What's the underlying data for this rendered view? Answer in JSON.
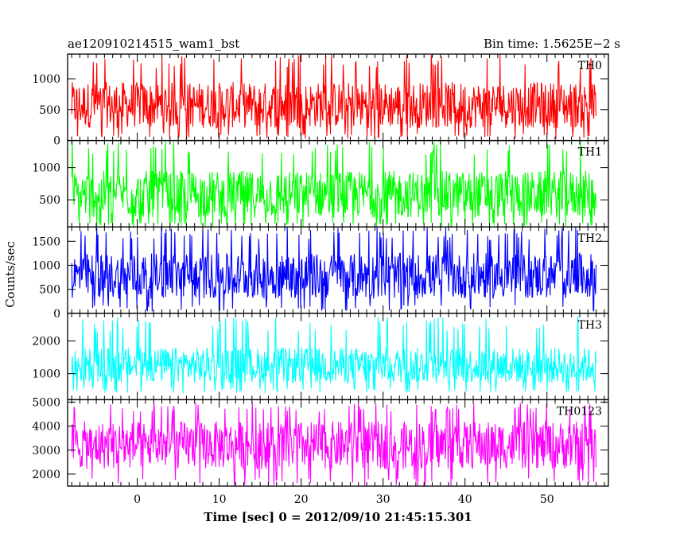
{
  "header": {
    "title": "ae120910214515_wam1_bst",
    "bin_time": "Bin time: 1.5625E−2 s"
  },
  "chart_data": {
    "type": "line",
    "subtype": "stacked light curves",
    "title": "ae120910214515_wam1_bst",
    "subtitle": "Bin time: 1.5625E−2 s",
    "xlabel": "Time [sec] 0 = 2012/09/10 21:45:15.301",
    "ylabel": "Counts/sec",
    "xlim": [
      -8.5,
      57.5
    ],
    "x_ticks": [
      0,
      10,
      20,
      30,
      40,
      50
    ],
    "x_tick_labels": [
      "0",
      "10",
      "20",
      "30",
      "40",
      "50"
    ],
    "data_x_range": [
      -8,
      56
    ],
    "grid": false,
    "legend": "none; each panel labelled at top-right",
    "panels": [
      {
        "name": "TH0",
        "color": "#ff0000",
        "ylim": [
          0,
          1400
        ],
        "y_ticks": [
          0,
          500,
          1000
        ],
        "y_tick_labels": [
          "0",
          "500",
          "1000"
        ],
        "trace": {
          "band_low": 200,
          "band_high": 950,
          "min": 30,
          "max": 1400
        }
      },
      {
        "name": "TH1",
        "color": "#00ff00",
        "ylim": [
          80,
          1420
        ],
        "y_ticks": [
          500,
          1000
        ],
        "y_tick_labels": [
          "500",
          "1000"
        ],
        "trace": {
          "band_low": 220,
          "band_high": 950,
          "min": 80,
          "max": 1420
        }
      },
      {
        "name": "TH2",
        "color": "#0000ff",
        "ylim": [
          0,
          1800
        ],
        "y_ticks": [
          0,
          500,
          1000,
          1500
        ],
        "y_tick_labels": [
          "0",
          "500",
          "1000",
          "1500"
        ],
        "trace": {
          "band_low": 300,
          "band_high": 1250,
          "min": 40,
          "max": 1800
        }
      },
      {
        "name": "TH3",
        "color": "#00ffff",
        "ylim": [
          200,
          2850
        ],
        "y_ticks": [
          1000,
          2000
        ],
        "y_tick_labels": [
          "1000",
          "2000"
        ],
        "trace": {
          "band_low": 700,
          "band_high": 1800,
          "min": 400,
          "max": 2780
        }
      },
      {
        "name": "TH0123",
        "color": "#ff00ff",
        "ylim": [
          1500,
          5100
        ],
        "y_ticks": [
          2000,
          3000,
          4000,
          5000
        ],
        "y_tick_labels": [
          "2000",
          "3000",
          "4000",
          "5000"
        ],
        "trace": {
          "band_low": 2200,
          "band_high": 4200,
          "min": 1500,
          "max": 5000
        }
      }
    ]
  }
}
